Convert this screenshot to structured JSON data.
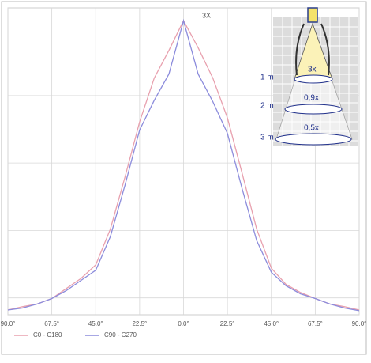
{
  "chart_data": {
    "type": "line",
    "annotation": "3X",
    "x": [
      -90,
      -82.5,
      -75,
      -67.5,
      -60,
      -52.5,
      -45,
      -37.5,
      -30,
      -22.5,
      -15,
      -7.5,
      0,
      7.5,
      15,
      22.5,
      30,
      37.5,
      45,
      52.5,
      60,
      67.5,
      75,
      82.5,
      90
    ],
    "series": [
      {
        "name": "C0 - C180",
        "color": "#e8a0ae",
        "values": [
          -0.18,
          -0.13,
          -0.09,
          -0.01,
          0.14,
          0.29,
          0.49,
          1.02,
          1.79,
          2.61,
          3.26,
          3.67,
          4.11,
          3.71,
          3.26,
          2.67,
          1.85,
          1.02,
          0.44,
          0.2,
          0.08,
          -0.01,
          -0.09,
          -0.13,
          -0.18
        ]
      },
      {
        "name": "C90 - C270",
        "color": "#8c8cdc",
        "values": [
          -0.18,
          -0.15,
          -0.09,
          -0.01,
          0.11,
          0.26,
          0.41,
          0.91,
          1.67,
          2.49,
          2.93,
          3.32,
          4.11,
          3.32,
          2.91,
          2.44,
          1.62,
          0.85,
          0.38,
          0.18,
          0.06,
          -0.01,
          -0.09,
          -0.15,
          -0.19
        ]
      }
    ],
    "xlim": [
      -90,
      90
    ],
    "xticks": [
      {
        "value": -90,
        "label": "90.0°"
      },
      {
        "value": -67.5,
        "label": "67.5°"
      },
      {
        "value": -45,
        "label": "45.0°"
      },
      {
        "value": -22.5,
        "label": "22.5°"
      },
      {
        "value": 0,
        "label": "0.0°"
      },
      {
        "value": 22.5,
        "label": "22.5°"
      },
      {
        "value": 45,
        "label": "45.0°"
      },
      {
        "value": 67.5,
        "label": "67.5°"
      },
      {
        "value": 90,
        "label": "90.0°"
      }
    ],
    "ylim": [
      -0.25,
      4.3
    ],
    "yticks": [
      0,
      1,
      2,
      3,
      4
    ],
    "grid": true,
    "legend": "bottom",
    "inset": {
      "distances": [
        "1 m",
        "2 m",
        "3 m"
      ],
      "factors": [
        "3x",
        "0,9x",
        "0,5x"
      ]
    }
  }
}
